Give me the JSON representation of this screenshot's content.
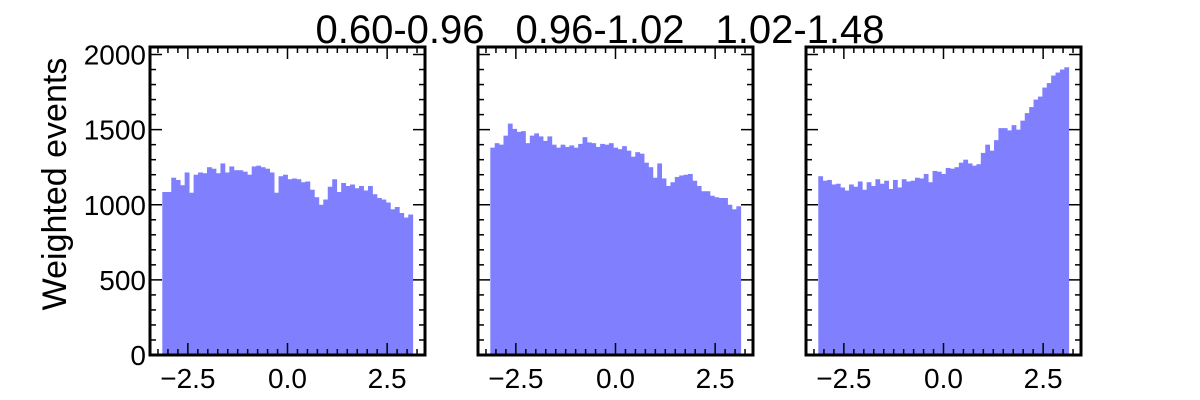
{
  "chart_data": [
    {
      "type": "bar",
      "title": "0.60-0.96",
      "xlabel": "",
      "ylabel": "Weighted events",
      "xlim": [
        -3.45,
        3.45
      ],
      "ylim": [
        0,
        2050
      ],
      "xticks": [
        -2.5,
        0.0,
        2.5
      ],
      "xtick_labels": [
        "−2.5",
        "0.0",
        "2.5"
      ],
      "yticks": [
        0,
        500,
        1000,
        1500,
        2000
      ],
      "ytick_labels": [
        "0",
        "500",
        "1000",
        "1500",
        "2000"
      ],
      "grid": false,
      "color": "#8080ff",
      "bin_range": [
        -3.1416,
        3.1416
      ],
      "values": [
        1085,
        1085,
        1180,
        1165,
        1130,
        1215,
        1080,
        1200,
        1215,
        1210,
        1250,
        1240,
        1210,
        1275,
        1215,
        1255,
        1230,
        1230,
        1220,
        1200,
        1255,
        1260,
        1250,
        1240,
        1215,
        1080,
        1190,
        1200,
        1170,
        1175,
        1170,
        1150,
        1155,
        1100,
        1050,
        1000,
        1035,
        1120,
        1170,
        1085,
        1145,
        1125,
        1135,
        1110,
        1125,
        1095,
        1125,
        1070,
        1045,
        1035,
        1015,
        970,
        985,
        945,
        915,
        935
      ]
    },
    {
      "type": "bar",
      "title": "0.96-1.02",
      "xlim": [
        -3.45,
        3.45
      ],
      "ylim": [
        0,
        2050
      ],
      "xticks": [
        -2.5,
        0.0,
        2.5
      ],
      "xtick_labels": [
        "−2.5",
        "0.0",
        "2.5"
      ],
      "grid": false,
      "color": "#8080ff",
      "bin_range": [
        -3.1416,
        3.1416
      ],
      "values": [
        1380,
        1410,
        1400,
        1460,
        1540,
        1505,
        1485,
        1490,
        1410,
        1460,
        1475,
        1455,
        1425,
        1455,
        1400,
        1380,
        1400,
        1385,
        1395,
        1380,
        1405,
        1450,
        1415,
        1410,
        1385,
        1405,
        1400,
        1410,
        1380,
        1370,
        1390,
        1360,
        1320,
        1350,
        1340,
        1280,
        1250,
        1180,
        1275,
        1175,
        1125,
        1150,
        1185,
        1195,
        1200,
        1205,
        1160,
        1125,
        1090,
        1090,
        1060,
        1050,
        1045,
        1045,
        1000,
        970,
        990
      ]
    },
    {
      "type": "bar",
      "title": "1.02-1.48",
      "xlim": [
        -3.45,
        3.45
      ],
      "ylim": [
        0,
        2050
      ],
      "xticks": [
        -2.5,
        0.0,
        2.5
      ],
      "xtick_labels": [
        "−2.5",
        "0.0",
        "2.5"
      ],
      "grid": false,
      "color": "#8080ff",
      "bin_range": [
        -3.1416,
        3.1416
      ],
      "values": [
        1190,
        1160,
        1165,
        1135,
        1140,
        1115,
        1095,
        1135,
        1120,
        1155,
        1100,
        1150,
        1125,
        1170,
        1140,
        1160,
        1105,
        1165,
        1115,
        1170,
        1155,
        1160,
        1180,
        1175,
        1205,
        1150,
        1225,
        1220,
        1205,
        1245,
        1240,
        1250,
        1280,
        1300,
        1275,
        1260,
        1270,
        1345,
        1400,
        1360,
        1430,
        1510,
        1510,
        1495,
        1530,
        1500,
        1560,
        1610,
        1650,
        1700,
        1720,
        1780,
        1810,
        1860,
        1880,
        1900,
        1915
      ]
    }
  ]
}
